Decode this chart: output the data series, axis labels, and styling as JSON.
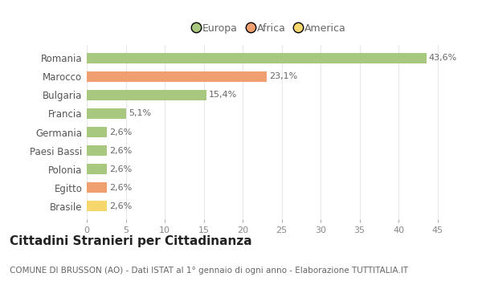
{
  "categories": [
    "Brasile",
    "Egitto",
    "Polonia",
    "Paesi Bassi",
    "Germania",
    "Francia",
    "Bulgaria",
    "Marocco",
    "Romania"
  ],
  "values": [
    2.6,
    2.6,
    2.6,
    2.6,
    2.6,
    5.1,
    15.4,
    23.1,
    43.6
  ],
  "labels": [
    "2,6%",
    "2,6%",
    "2,6%",
    "2,6%",
    "2,6%",
    "5,1%",
    "15,4%",
    "23,1%",
    "43,6%"
  ],
  "colors": [
    "#f5d76e",
    "#f0a070",
    "#a8c880",
    "#a8c880",
    "#a8c880",
    "#a8c880",
    "#a8c880",
    "#f0a070",
    "#a8c880"
  ],
  "legend": [
    {
      "label": "Europa",
      "color": "#a8c880"
    },
    {
      "label": "Africa",
      "color": "#f0a070"
    },
    {
      "label": "America",
      "color": "#f5d76e"
    }
  ],
  "xlim": [
    0,
    47
  ],
  "xticks": [
    0,
    5,
    10,
    15,
    20,
    25,
    30,
    35,
    40,
    45
  ],
  "title": "Cittadini Stranieri per Cittadinanza",
  "subtitle": "COMUNE DI BRUSSON (AO) - Dati ISTAT al 1° gennaio di ogni anno - Elaborazione TUTTITALIA.IT",
  "background_color": "#ffffff",
  "grid_color": "#e8e8e8",
  "bar_height": 0.55,
  "label_fontsize": 8,
  "tick_fontsize": 8,
  "ylabel_fontsize": 8.5,
  "title_fontsize": 11,
  "subtitle_fontsize": 7.5
}
